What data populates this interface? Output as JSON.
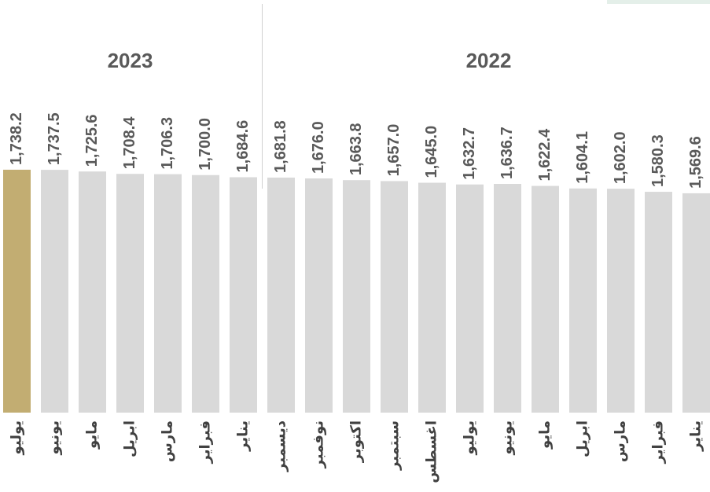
{
  "chart_data": {
    "type": "bar",
    "groups": [
      {
        "label": "2023",
        "categories": [
          "يوليو",
          "يونيو",
          "مايو",
          "ابريل",
          "مارس",
          "فبراير",
          "يناير"
        ],
        "values": [
          1738.2,
          1737.5,
          1725.6,
          1708.4,
          1706.3,
          1700.0,
          1684.6
        ],
        "value_labels": [
          "1,738.2",
          "1,737.5",
          "1,725.6",
          "1,708.4",
          "1,706.3",
          "1,700.0",
          "1,684.6"
        ],
        "colors": [
          "#c2ad72",
          "#d9d9d9",
          "#d9d9d9",
          "#d9d9d9",
          "#d9d9d9",
          "#d9d9d9",
          "#d9d9d9"
        ]
      },
      {
        "label": "2022",
        "categories": [
          "ديسمبر",
          "نوفمبر",
          "اكتوبر",
          "سبتمبر",
          "اغسطس",
          "يوليو",
          "يونيو",
          "مايو",
          "ابريل",
          "مارس",
          "فبراير",
          "يناير"
        ],
        "values": [
          1681.8,
          1676.0,
          1663.8,
          1657.0,
          1645.0,
          1632.7,
          1636.7,
          1622.4,
          1604.1,
          1602.0,
          1580.3,
          1569.6
        ],
        "value_labels": [
          "1,681.8",
          "1,676.0",
          "1,663.8",
          "1,657.0",
          "1,645.0",
          "1,632.7",
          "1,636.7",
          "1,622.4",
          "1,604.1",
          "1,602.0",
          "1,580.3",
          "1,569.6"
        ],
        "colors": [
          "#d9d9d9",
          "#d9d9d9",
          "#d9d9d9",
          "#d9d9d9",
          "#d9d9d9",
          "#d9d9d9",
          "#d9d9d9",
          "#d9d9d9",
          "#d9d9d9",
          "#d9d9d9",
          "#d9d9d9",
          "#d9d9d9"
        ]
      }
    ],
    "ylim": [
      0,
      2000
    ]
  }
}
